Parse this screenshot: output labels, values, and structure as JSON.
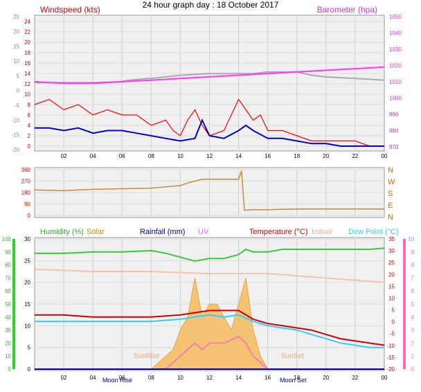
{
  "page_title": "24 hour graph day : 18 October 2017",
  "x_ticks": [
    "02",
    "04",
    "06",
    "08",
    "10",
    "12",
    "14",
    "16",
    "18",
    "20",
    "22",
    "00"
  ],
  "colors": {
    "wind": "#ff0000",
    "gust": "#ff0000",
    "avg_wind": "#0000cc",
    "baro": "#ff33ff",
    "temp": "#cc0000",
    "dew": "#33ccff",
    "humidity": "#33cc33",
    "indoor": "#f7c0a8",
    "solar": "#ccaa00",
    "uv": "#ff66cc",
    "rain": "#000099",
    "dir": "#cc8833",
    "temp_ref": "#aaaaaa"
  },
  "chart_data": [
    {
      "type": "line",
      "title": "Windspeed (kts)",
      "legend": [
        "Windspeed (kts)",
        "Barometer (hpa)"
      ],
      "ylim": [
        -20,
        25
      ],
      "y_ticks": [
        -20,
        -15,
        -10,
        -5,
        0,
        5,
        10,
        15,
        20,
        25
      ],
      "y_ticks_inner": [
        0,
        2,
        4,
        6,
        8,
        10,
        12,
        14,
        16,
        18,
        20,
        22,
        24
      ],
      "y2lim": [
        970,
        1050
      ],
      "y2_ticks": [
        970,
        980,
        990,
        1000,
        1010,
        1020,
        1030,
        1040,
        1050
      ],
      "series": [
        {
          "name": "Windspeed (kts)",
          "x": [
            0,
            1,
            2,
            3,
            4,
            5,
            6,
            7,
            8,
            9,
            9.5,
            10,
            10.5,
            11,
            11.5,
            12,
            13,
            14,
            14.5,
            15,
            15.5,
            16,
            17,
            18,
            19,
            20,
            21,
            22,
            23,
            24
          ],
          "values": [
            8,
            9,
            7,
            8,
            6,
            7,
            6,
            6,
            4,
            5,
            3,
            2,
            5,
            7,
            4,
            2,
            3,
            9,
            7,
            5,
            6,
            3,
            3,
            2,
            1,
            1,
            1,
            1,
            0,
            0
          ]
        },
        {
          "name": "Average",
          "x": [
            0,
            1,
            2,
            3,
            4,
            5,
            6,
            7,
            8,
            9,
            10,
            11,
            11.5,
            12,
            13,
            14,
            14.5,
            15,
            16,
            17,
            18,
            19,
            20,
            21,
            22,
            23,
            24
          ],
          "values": [
            3.5,
            3.5,
            3,
            3.5,
            2.5,
            3,
            3,
            2.5,
            2,
            1.5,
            1,
            1.5,
            5,
            2,
            1.5,
            3,
            4,
            3,
            1.5,
            1.5,
            1,
            0.5,
            0.5,
            0,
            0,
            0,
            0
          ]
        },
        {
          "name": "Barometer (hpa)",
          "x": [
            0,
            2,
            4,
            6,
            8,
            10,
            12,
            14,
            16,
            18,
            20,
            22,
            24
          ],
          "values": [
            1010,
            1009,
            1009,
            1010,
            1011,
            1012,
            1013,
            1014,
            1015,
            1016,
            1017,
            1018,
            1019
          ]
        }
      ]
    },
    {
      "type": "scatter",
      "title": "Wind direction",
      "ylim": [
        0,
        360
      ],
      "y_ticks": [
        0,
        90,
        180,
        270,
        360
      ],
      "y2_labels": [
        "N",
        "W",
        "S",
        "E",
        "N"
      ],
      "series": [
        {
          "name": "Direction",
          "x": [
            0,
            2,
            4,
            6,
            8,
            10,
            10.5,
            11.5,
            12,
            14,
            14.2,
            14.4,
            15,
            16,
            18,
            20,
            22,
            24
          ],
          "values": [
            200,
            195,
            205,
            210,
            215,
            235,
            255,
            285,
            285,
            285,
            350,
            40,
            45,
            45,
            50,
            50,
            50,
            50
          ]
        }
      ]
    },
    {
      "type": "line",
      "legend": [
        "Humidity (%)",
        "Solar",
        "Rainfall (mm)",
        "UV",
        "Temperature (°C)",
        "Indoor",
        "Dew Point (°C)"
      ],
      "ylim": [
        0,
        100
      ],
      "y_ticks": [
        0,
        10,
        20,
        30,
        40,
        50,
        60,
        70,
        80,
        90,
        100
      ],
      "y_ticks_inner": [
        0,
        5,
        10,
        15,
        20,
        25,
        30
      ],
      "y2lim": [
        -20,
        35
      ],
      "y2_ticks": [
        -20,
        -15,
        -10,
        -5,
        0,
        5,
        10,
        15,
        20,
        25,
        30,
        35
      ],
      "y3_ticks": [
        0,
        1,
        2,
        3,
        4,
        5,
        6,
        7,
        8,
        9,
        10
      ],
      "annotations": [
        "SunRise",
        "SunSet",
        "Moon Rise",
        "Moon Set"
      ],
      "series": [
        {
          "name": "Humidity (%)",
          "x": [
            0,
            2,
            4,
            6,
            8,
            9,
            10,
            11,
            12,
            13,
            14,
            14.5,
            15,
            16,
            17,
            18,
            19,
            20,
            21,
            22,
            23,
            24
          ],
          "values": [
            89,
            89,
            90,
            90,
            91,
            89,
            86,
            83,
            85,
            85,
            88,
            92,
            90,
            90,
            92,
            92,
            92,
            92,
            92,
            92,
            92,
            93
          ]
        },
        {
          "name": "Indoor",
          "x": [
            0,
            4,
            8,
            12,
            16,
            20,
            24
          ],
          "values": [
            23,
            22.5,
            22.5,
            22,
            22,
            21,
            20
          ]
        },
        {
          "name": "Temperature (°C)",
          "x": [
            0,
            2,
            4,
            6,
            8,
            10,
            11,
            12,
            13,
            14,
            15,
            16,
            17,
            18,
            19,
            20,
            21,
            22,
            23,
            24
          ],
          "values": [
            12.5,
            12.5,
            12,
            12,
            12,
            12.5,
            13,
            13.5,
            13.5,
            13.5,
            11.5,
            10.5,
            10,
            9.5,
            9,
            8,
            7,
            6.5,
            6,
            5.5
          ]
        },
        {
          "name": "Dew Point (°C)",
          "x": [
            0,
            2,
            4,
            6,
            8,
            10,
            11,
            12,
            13,
            14,
            15,
            16,
            17,
            18,
            19,
            20,
            21,
            22,
            23,
            24
          ],
          "values": [
            11,
            11,
            11,
            11,
            11,
            11.5,
            12,
            12.5,
            12,
            12.5,
            11,
            10,
            9.5,
            9,
            8,
            7,
            6,
            5.5,
            5,
            5
          ]
        },
        {
          "name": "Solar",
          "x": [
            7,
            8,
            8.5,
            9,
            9.5,
            10,
            10.5,
            11,
            11.5,
            12,
            12.5,
            13,
            13.5,
            14,
            14.5,
            15,
            15.5,
            16,
            17
          ],
          "values": [
            0,
            0,
            0.5,
            1,
            1.5,
            3,
            4,
            7,
            4,
            5,
            5,
            4,
            3,
            5,
            7,
            3,
            1,
            0,
            0
          ]
        },
        {
          "name": "UV",
          "x": [
            9,
            10,
            10.5,
            11,
            11.5,
            12,
            13,
            14,
            14.5,
            15,
            16
          ],
          "values": [
            0,
            1,
            1.5,
            2,
            1.5,
            2,
            2,
            2.5,
            2,
            1,
            0
          ]
        },
        {
          "name": "Rainfall (mm)",
          "x": [
            0,
            24
          ],
          "values": [
            0,
            0
          ]
        }
      ]
    }
  ]
}
